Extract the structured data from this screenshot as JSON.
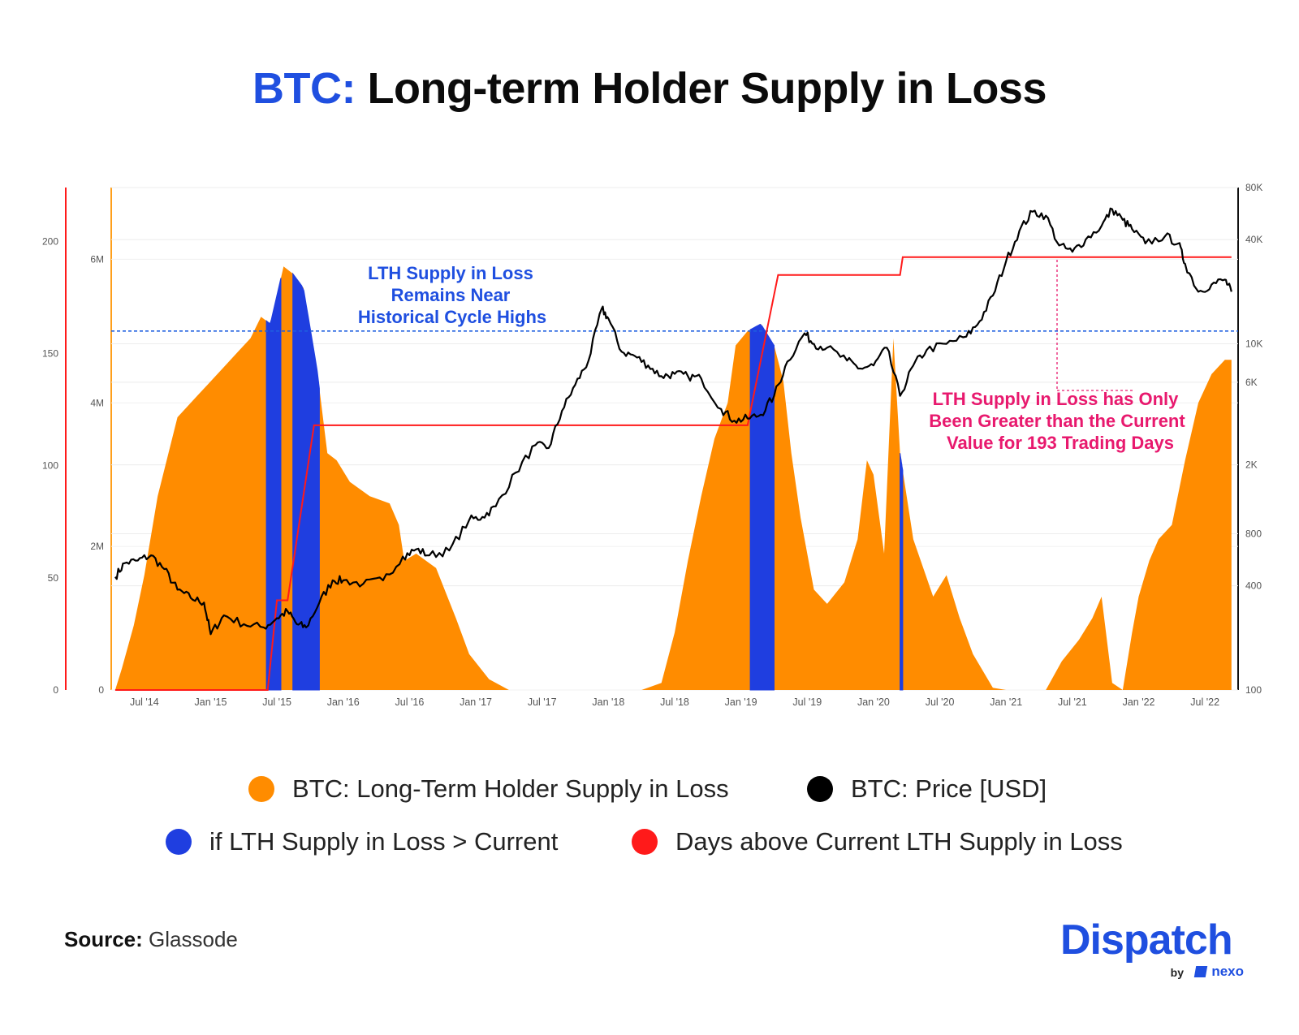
{
  "title": {
    "prefix": "BTC:",
    "rest": " Long-term Holder Supply in Loss"
  },
  "colors": {
    "supply": "#ff8c00",
    "above": "#1f3ee0",
    "price": "#000000",
    "days": "#ff1a1a",
    "title_accent": "#1f4fe0",
    "annotation_right": "#e8196e"
  },
  "annotations": {
    "left": [
      "LTH Supply in Loss",
      "Remains Near",
      "Historical Cycle Highs"
    ],
    "right": [
      "LTH Supply in Loss has Only",
      "Been Greater than the Current",
      "Value for 193 Trading Days"
    ]
  },
  "legend": [
    {
      "label": "BTC: Long-Term Holder Supply in Loss",
      "color": "#ff8c00"
    },
    {
      "label": "BTC: Price [USD]",
      "color": "#000000"
    },
    {
      "label": "if LTH Supply in Loss > Current",
      "color": "#1f3ee0"
    },
    {
      "label": "Days above Current LTH Supply in Loss",
      "color": "#ff1a1a"
    }
  ],
  "source": {
    "label": "Source:",
    "value": " Glassode"
  },
  "brand": {
    "name": "Dispatch",
    "by": "by",
    "partner": "nexo"
  },
  "chart_data": {
    "type": "area",
    "x_range": [
      2014.25,
      2022.75
    ],
    "x_ticks": [
      {
        "label": "Jul '14",
        "x": 2014.5
      },
      {
        "label": "Jan '15",
        "x": 2015.0
      },
      {
        "label": "Jul '15",
        "x": 2015.5
      },
      {
        "label": "Jan '16",
        "x": 2016.0
      },
      {
        "label": "Jul '16",
        "x": 2016.5
      },
      {
        "label": "Jan '17",
        "x": 2017.0
      },
      {
        "label": "Jul '17",
        "x": 2017.5
      },
      {
        "label": "Jan '18",
        "x": 2018.0
      },
      {
        "label": "Jul '18",
        "x": 2018.5
      },
      {
        "label": "Jan '19",
        "x": 2019.0
      },
      {
        "label": "Jul '19",
        "x": 2019.5
      },
      {
        "label": "Jan '20",
        "x": 2020.0
      },
      {
        "label": "Jul '20",
        "x": 2020.5
      },
      {
        "label": "Jan '21",
        "x": 2021.0
      },
      {
        "label": "Jul '21",
        "x": 2021.5
      },
      {
        "label": "Jan '22",
        "x": 2022.0
      },
      {
        "label": "Jul '22",
        "x": 2022.5
      }
    ],
    "axes": {
      "days": {
        "ticks": [
          0,
          50,
          100,
          150,
          200
        ],
        "labels": [
          "0",
          "50",
          "100",
          "150",
          "200"
        ],
        "range": [
          0,
          224
        ]
      },
      "supply": {
        "ticks": [
          0,
          2000000,
          4000000,
          6000000
        ],
        "labels": [
          "0",
          "2M",
          "4M",
          "6M"
        ],
        "range": [
          0,
          7000000
        ]
      },
      "price": {
        "ticks": [
          100,
          400,
          800,
          2000,
          6000,
          10000,
          40000,
          80000
        ],
        "labels": [
          "100",
          "400",
          "800",
          "2K",
          "6K",
          "10K",
          "40K",
          "80K"
        ],
        "range": [
          100,
          80000
        ],
        "scale": "log"
      }
    },
    "threshold": 5000000,
    "series": [
      {
        "name": "BTC: Long-Term Holder Supply in Loss",
        "points": [
          [
            2014.28,
            0
          ],
          [
            2014.33,
            300000
          ],
          [
            2014.42,
            900000
          ],
          [
            2014.5,
            1600000
          ],
          [
            2014.6,
            2700000
          ],
          [
            2014.75,
            3800000
          ],
          [
            2014.9,
            4100000
          ],
          [
            2015.0,
            4300000
          ],
          [
            2015.1,
            4500000
          ],
          [
            2015.2,
            4700000
          ],
          [
            2015.3,
            4900000
          ],
          [
            2015.38,
            5200000
          ],
          [
            2015.45,
            5100000
          ],
          [
            2015.55,
            5900000
          ],
          [
            2015.62,
            5800000
          ],
          [
            2015.7,
            5600000
          ],
          [
            2015.8,
            4500000
          ],
          [
            2015.88,
            3300000
          ],
          [
            2015.95,
            3200000
          ],
          [
            2016.05,
            2900000
          ],
          [
            2016.2,
            2700000
          ],
          [
            2016.35,
            2600000
          ],
          [
            2016.42,
            2300000
          ],
          [
            2016.46,
            1800000
          ],
          [
            2016.55,
            1900000
          ],
          [
            2016.7,
            1700000
          ],
          [
            2016.85,
            1000000
          ],
          [
            2016.95,
            500000
          ],
          [
            2017.1,
            150000
          ],
          [
            2017.25,
            0
          ],
          [
            2018.25,
            0
          ],
          [
            2018.4,
            100000
          ],
          [
            2018.5,
            800000
          ],
          [
            2018.6,
            1800000
          ],
          [
            2018.7,
            2700000
          ],
          [
            2018.8,
            3500000
          ],
          [
            2018.9,
            4000000
          ],
          [
            2018.96,
            4800000
          ],
          [
            2019.05,
            5000000
          ],
          [
            2019.15,
            5100000
          ],
          [
            2019.25,
            4800000
          ],
          [
            2019.32,
            4300000
          ],
          [
            2019.38,
            3300000
          ],
          [
            2019.45,
            2400000
          ],
          [
            2019.55,
            1400000
          ],
          [
            2019.65,
            1200000
          ],
          [
            2019.78,
            1500000
          ],
          [
            2019.88,
            2100000
          ],
          [
            2019.95,
            3200000
          ],
          [
            2020.0,
            3000000
          ],
          [
            2020.08,
            1900000
          ],
          [
            2020.15,
            4900000
          ],
          [
            2020.2,
            3300000
          ],
          [
            2020.3,
            2100000
          ],
          [
            2020.45,
            1300000
          ],
          [
            2020.55,
            1600000
          ],
          [
            2020.65,
            1000000
          ],
          [
            2020.75,
            500000
          ],
          [
            2020.9,
            30000
          ],
          [
            2021.0,
            0
          ],
          [
            2021.3,
            0
          ],
          [
            2021.42,
            400000
          ],
          [
            2021.55,
            700000
          ],
          [
            2021.65,
            1000000
          ],
          [
            2021.72,
            1300000
          ],
          [
            2021.8,
            100000
          ],
          [
            2021.88,
            0
          ],
          [
            2021.95,
            800000
          ],
          [
            2022.0,
            1300000
          ],
          [
            2022.08,
            1800000
          ],
          [
            2022.15,
            2100000
          ],
          [
            2022.25,
            2300000
          ],
          [
            2022.35,
            3200000
          ],
          [
            2022.45,
            4000000
          ],
          [
            2022.55,
            4400000
          ],
          [
            2022.65,
            4600000
          ],
          [
            2022.7,
            4600000
          ],
          [
            2022.7,
            0
          ]
        ]
      },
      {
        "name": "if LTH Supply in Loss > Current",
        "segments": [
          [
            2015.42,
            2015.53
          ],
          [
            2015.62,
            2015.82
          ],
          [
            2019.07,
            2019.25
          ],
          [
            2020.2,
            2020.22
          ]
        ]
      },
      {
        "name": "BTC: Price [USD]",
        "points": [
          [
            2014.28,
            450
          ],
          [
            2014.35,
            540
          ],
          [
            2014.45,
            560
          ],
          [
            2014.55,
            600
          ],
          [
            2014.65,
            500
          ],
          [
            2014.75,
            380
          ],
          [
            2014.85,
            340
          ],
          [
            2014.95,
            320
          ],
          [
            2015.0,
            210
          ],
          [
            2015.1,
            270
          ],
          [
            2015.25,
            240
          ],
          [
            2015.4,
            230
          ],
          [
            2015.5,
            260
          ],
          [
            2015.58,
            285
          ],
          [
            2015.65,
            240
          ],
          [
            2015.72,
            230
          ],
          [
            2015.82,
            320
          ],
          [
            2015.92,
            430
          ],
          [
            2016.0,
            430
          ],
          [
            2016.15,
            410
          ],
          [
            2016.3,
            430
          ],
          [
            2016.45,
            590
          ],
          [
            2016.55,
            650
          ],
          [
            2016.65,
            600
          ],
          [
            2016.8,
            640
          ],
          [
            2016.95,
            960
          ],
          [
            2017.05,
            1000
          ],
          [
            2017.15,
            1150
          ],
          [
            2017.3,
            1800
          ],
          [
            2017.45,
            2600
          ],
          [
            2017.55,
            2500
          ],
          [
            2017.65,
            4100
          ],
          [
            2017.75,
            5800
          ],
          [
            2017.85,
            8000
          ],
          [
            2017.95,
            16000
          ],
          [
            2018.0,
            14000
          ],
          [
            2018.1,
            9000
          ],
          [
            2018.2,
            8500
          ],
          [
            2018.3,
            7500
          ],
          [
            2018.4,
            6500
          ],
          [
            2018.5,
            6700
          ],
          [
            2018.6,
            6500
          ],
          [
            2018.7,
            6300
          ],
          [
            2018.85,
            4200
          ],
          [
            2018.95,
            3600
          ],
          [
            2019.05,
            3700
          ],
          [
            2019.15,
            3900
          ],
          [
            2019.25,
            5000
          ],
          [
            2019.35,
            7900
          ],
          [
            2019.48,
            11500
          ],
          [
            2019.55,
            10000
          ],
          [
            2019.65,
            9500
          ],
          [
            2019.8,
            8000
          ],
          [
            2019.9,
            7200
          ],
          [
            2020.0,
            7500
          ],
          [
            2020.1,
            9500
          ],
          [
            2020.2,
            5000
          ],
          [
            2020.3,
            7500
          ],
          [
            2020.4,
            9200
          ],
          [
            2020.55,
            10000
          ],
          [
            2020.7,
            11000
          ],
          [
            2020.8,
            13500
          ],
          [
            2020.9,
            19000
          ],
          [
            2021.0,
            30000
          ],
          [
            2021.1,
            45000
          ],
          [
            2021.2,
            58000
          ],
          [
            2021.3,
            55000
          ],
          [
            2021.4,
            37000
          ],
          [
            2021.5,
            34000
          ],
          [
            2021.6,
            40000
          ],
          [
            2021.72,
            48000
          ],
          [
            2021.8,
            60000
          ],
          [
            2021.88,
            52000
          ],
          [
            2021.95,
            46000
          ],
          [
            2022.05,
            38000
          ],
          [
            2022.2,
            42000
          ],
          [
            2022.3,
            38000
          ],
          [
            2022.35,
            29000
          ],
          [
            2022.45,
            20000
          ],
          [
            2022.55,
            22000
          ],
          [
            2022.65,
            23500
          ],
          [
            2022.7,
            20000
          ]
        ]
      },
      {
        "name": "Days above Current LTH Supply in Loss",
        "points": [
          [
            2014.28,
            0
          ],
          [
            2015.43,
            0
          ],
          [
            2015.5,
            40
          ],
          [
            2015.58,
            40
          ],
          [
            2015.78,
            118
          ],
          [
            2019.05,
            118
          ],
          [
            2019.28,
            185
          ],
          [
            2020.2,
            185
          ],
          [
            2020.22,
            193
          ],
          [
            2022.7,
            193
          ]
        ]
      }
    ]
  }
}
